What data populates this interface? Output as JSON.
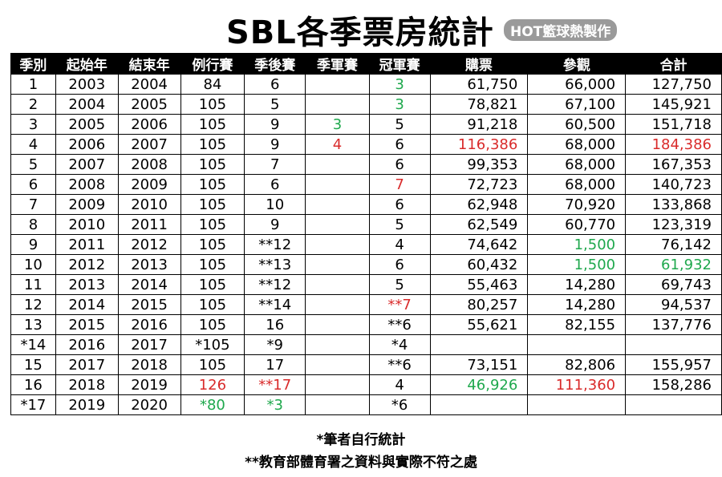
{
  "title": "SBL各季票房統計",
  "badge": "HOT籃球熱製作",
  "columns": [
    "季別",
    "起始年",
    "結束年",
    "例行賽",
    "季後賽",
    "季軍賽",
    "冠軍賽",
    "購票",
    "參觀",
    "合計"
  ],
  "rows": [
    [
      {
        "v": "1"
      },
      {
        "v": "2003"
      },
      {
        "v": "2004"
      },
      {
        "v": "84"
      },
      {
        "v": "6"
      },
      {
        "v": ""
      },
      {
        "v": "3",
        "c": "green"
      },
      {
        "v": "61,750"
      },
      {
        "v": "66,000"
      },
      {
        "v": "127,750"
      }
    ],
    [
      {
        "v": "2"
      },
      {
        "v": "2004"
      },
      {
        "v": "2005"
      },
      {
        "v": "105"
      },
      {
        "v": "5"
      },
      {
        "v": ""
      },
      {
        "v": "3",
        "c": "green"
      },
      {
        "v": "78,821"
      },
      {
        "v": "67,100"
      },
      {
        "v": "145,921"
      }
    ],
    [
      {
        "v": "3"
      },
      {
        "v": "2005"
      },
      {
        "v": "2006"
      },
      {
        "v": "105"
      },
      {
        "v": "9"
      },
      {
        "v": "3",
        "c": "green"
      },
      {
        "v": "5"
      },
      {
        "v": "91,218"
      },
      {
        "v": "60,500"
      },
      {
        "v": "151,718"
      }
    ],
    [
      {
        "v": "4"
      },
      {
        "v": "2006"
      },
      {
        "v": "2007"
      },
      {
        "v": "105"
      },
      {
        "v": "9"
      },
      {
        "v": "4",
        "c": "red"
      },
      {
        "v": "6"
      },
      {
        "v": "116,386",
        "c": "red"
      },
      {
        "v": "68,000"
      },
      {
        "v": "184,386",
        "c": "red"
      }
    ],
    [
      {
        "v": "5"
      },
      {
        "v": "2007"
      },
      {
        "v": "2008"
      },
      {
        "v": "105"
      },
      {
        "v": "7"
      },
      {
        "v": ""
      },
      {
        "v": "6"
      },
      {
        "v": "99,353"
      },
      {
        "v": "68,000"
      },
      {
        "v": "167,353"
      }
    ],
    [
      {
        "v": "6"
      },
      {
        "v": "2008"
      },
      {
        "v": "2009"
      },
      {
        "v": "105"
      },
      {
        "v": "6"
      },
      {
        "v": ""
      },
      {
        "v": "7",
        "c": "red"
      },
      {
        "v": "72,723"
      },
      {
        "v": "68,000"
      },
      {
        "v": "140,723"
      }
    ],
    [
      {
        "v": "7"
      },
      {
        "v": "2009"
      },
      {
        "v": "2010"
      },
      {
        "v": "105"
      },
      {
        "v": "10"
      },
      {
        "v": ""
      },
      {
        "v": "6"
      },
      {
        "v": "62,948"
      },
      {
        "v": "70,920"
      },
      {
        "v": "133,868"
      }
    ],
    [
      {
        "v": "8"
      },
      {
        "v": "2010"
      },
      {
        "v": "2011"
      },
      {
        "v": "105"
      },
      {
        "v": "9"
      },
      {
        "v": ""
      },
      {
        "v": "5"
      },
      {
        "v": "62,549"
      },
      {
        "v": "60,770"
      },
      {
        "v": "123,319"
      }
    ],
    [
      {
        "v": "9"
      },
      {
        "v": "2011"
      },
      {
        "v": "2012"
      },
      {
        "v": "105"
      },
      {
        "v": "**12"
      },
      {
        "v": ""
      },
      {
        "v": "4"
      },
      {
        "v": "74,642"
      },
      {
        "v": "1,500",
        "c": "green"
      },
      {
        "v": "76,142"
      }
    ],
    [
      {
        "v": "10"
      },
      {
        "v": "2012"
      },
      {
        "v": "2013"
      },
      {
        "v": "105"
      },
      {
        "v": "**13"
      },
      {
        "v": ""
      },
      {
        "v": "6"
      },
      {
        "v": "60,432"
      },
      {
        "v": "1,500",
        "c": "green"
      },
      {
        "v": "61,932",
        "c": "green"
      }
    ],
    [
      {
        "v": "11"
      },
      {
        "v": "2013"
      },
      {
        "v": "2014"
      },
      {
        "v": "105"
      },
      {
        "v": "**12"
      },
      {
        "v": ""
      },
      {
        "v": "5"
      },
      {
        "v": "55,463"
      },
      {
        "v": "14,280"
      },
      {
        "v": "69,743"
      }
    ],
    [
      {
        "v": "12"
      },
      {
        "v": "2014"
      },
      {
        "v": "2015"
      },
      {
        "v": "105"
      },
      {
        "v": "**14"
      },
      {
        "v": ""
      },
      {
        "v": "**7",
        "c": "red"
      },
      {
        "v": "80,257"
      },
      {
        "v": "14,280"
      },
      {
        "v": "94,537"
      }
    ],
    [
      {
        "v": "13"
      },
      {
        "v": "2015"
      },
      {
        "v": "2016"
      },
      {
        "v": "105"
      },
      {
        "v": "16"
      },
      {
        "v": ""
      },
      {
        "v": "**6"
      },
      {
        "v": "55,621"
      },
      {
        "v": "82,155"
      },
      {
        "v": "137,776"
      }
    ],
    [
      {
        "v": "*14"
      },
      {
        "v": "2016"
      },
      {
        "v": "2017"
      },
      {
        "v": "*105"
      },
      {
        "v": "*9"
      },
      {
        "v": ""
      },
      {
        "v": "*4"
      },
      {
        "v": ""
      },
      {
        "v": ""
      },
      {
        "v": ""
      }
    ],
    [
      {
        "v": "15"
      },
      {
        "v": "2017"
      },
      {
        "v": "2018"
      },
      {
        "v": "105"
      },
      {
        "v": "17"
      },
      {
        "v": ""
      },
      {
        "v": "**6"
      },
      {
        "v": "73,151"
      },
      {
        "v": "82,806"
      },
      {
        "v": "155,957"
      }
    ],
    [
      {
        "v": "16"
      },
      {
        "v": "2018"
      },
      {
        "v": "2019"
      },
      {
        "v": "126",
        "c": "red"
      },
      {
        "v": "**17",
        "c": "red"
      },
      {
        "v": ""
      },
      {
        "v": "4"
      },
      {
        "v": "46,926",
        "c": "green"
      },
      {
        "v": "111,360",
        "c": "red"
      },
      {
        "v": "158,286"
      }
    ],
    [
      {
        "v": "*17"
      },
      {
        "v": "2019"
      },
      {
        "v": "2020"
      },
      {
        "v": "*80",
        "c": "green"
      },
      {
        "v": "*3",
        "c": "green"
      },
      {
        "v": ""
      },
      {
        "v": "*6"
      },
      {
        "v": ""
      },
      {
        "v": ""
      },
      {
        "v": ""
      }
    ]
  ],
  "footnotes": {
    "note1": "*筆者自行統計",
    "note2": "**教育部體育署之資料與實際不符之處"
  },
  "colors": {
    "red": "#d92b2b",
    "green": "#1fa84d",
    "header_bg": "#000000"
  }
}
